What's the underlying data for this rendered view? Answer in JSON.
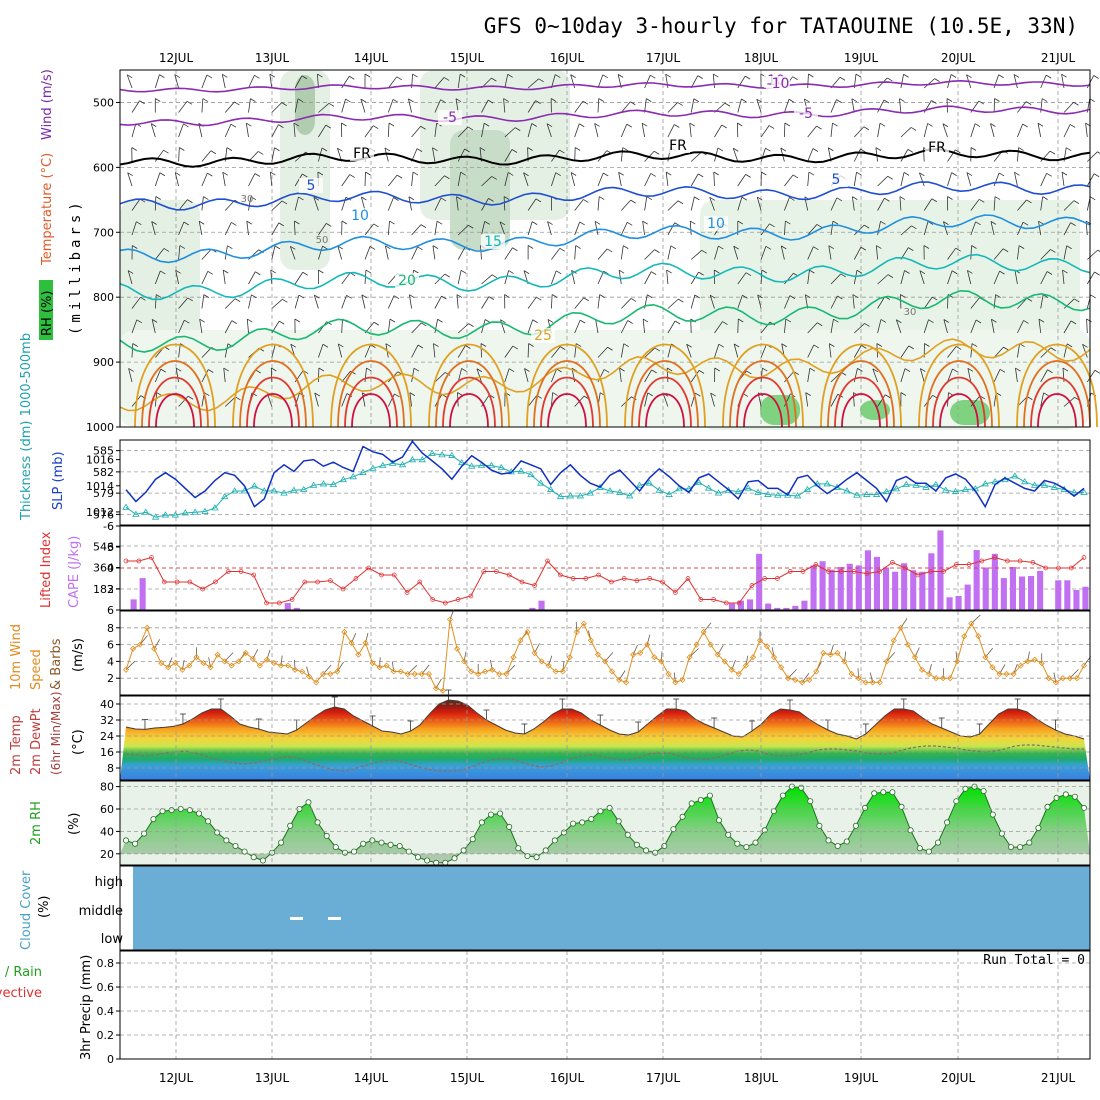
{
  "page_title": "GFS 0~10day 3-hourly for TATAOUINE (10.5E, 33N)",
  "dates": [
    "12JUL",
    "13JUL",
    "14JUL",
    "15JUL",
    "16JUL",
    "17JUL",
    "18JUL",
    "19JUL",
    "20JUL",
    "21JUL"
  ],
  "colors": {
    "cape": "#c070f0",
    "li": "#e03030",
    "slp": "#1030c0",
    "thickness": "#20b0b0",
    "wspd": "#e09020",
    "temp_red": "#d01818",
    "cloud": "#6aaed6",
    "rh_fill": "#00c000"
  },
  "chart_data": [
    {
      "id": "profile",
      "type": "contour",
      "ylabel_left": [
        "RH (%)",
        "Temperature (°C)",
        "Wind (m/s)"
      ],
      "ylabel_right": "(millibars)",
      "y_ticks": [
        "500",
        "600",
        "700",
        "800",
        "900",
        "1000"
      ],
      "ylim": [
        450,
        1000
      ],
      "isotherm_labels": [
        "10",
        "-5",
        "FR",
        "5",
        "10",
        "15",
        "20",
        "25",
        "-10",
        "-5",
        "FR",
        "5",
        "10",
        "FR"
      ],
      "rh_labels": [
        "30",
        "50",
        "30"
      ],
      "isotherms": [
        {
          "label": "-10",
          "p_start": 480,
          "p_end": 470
        },
        {
          "label": "-5",
          "p_start": 530,
          "p_end": 510
        },
        {
          "label": "FR",
          "p_start": 590,
          "p_end": 580
        },
        {
          "label": "5",
          "p_start": 655,
          "p_end": 630
        },
        {
          "label": "10",
          "p_start": 735,
          "p_end": 680
        },
        {
          "label": "15",
          "p_start": 790,
          "p_end": 745
        },
        {
          "label": "20",
          "p_start": 870,
          "p_end": 800
        },
        {
          "label": "25",
          "p_start": 960,
          "p_end": 875
        }
      ]
    },
    {
      "id": "slp",
      "type": "line",
      "left_label": "Thickness (dm) 1000-500mb",
      "right_label": "SLP (mb)",
      "left_ticks": [
        "585",
        "582",
        "579",
        "576"
      ],
      "right_ticks": [
        "1016",
        "1014",
        "1012"
      ],
      "series": [
        {
          "name": "SLP (mb)",
          "unit": "mb",
          "values": [
            1013.7,
            1012.8,
            1013.5,
            1014.5,
            1015.0,
            1014.5,
            1013.8,
            1013.1,
            1013.6,
            1014.4,
            1015.0,
            1014.8,
            1014.0,
            1012.4,
            1013.0,
            1015.0,
            1015.6,
            1015.1,
            1015.9,
            1016.0,
            1015.5,
            1015.8,
            1015.4,
            1015.1,
            1017.0,
            1016.6,
            1016.4,
            1015.8,
            1016.2,
            1017.4,
            1016.5,
            1015.9,
            1015.3,
            1014.5,
            1015.5,
            1016.3,
            1015.8,
            1015.2,
            1014.9,
            1015.0,
            1015.9,
            1015.6,
            1015.3,
            1014.1,
            1015.0,
            1015.6,
            1014.8,
            1014.2,
            1013.9,
            1014.8,
            1015.2,
            1014.4,
            1013.6,
            1014.6,
            1015.3,
            1014.7,
            1014.0,
            1013.5,
            1014.6,
            1014.9,
            1014.3,
            1013.7,
            1013.0,
            1014.3,
            1014.4,
            1013.8,
            1013.8,
            1013.3,
            1014.6,
            1014.8,
            1014.0,
            1013.4,
            1013.9,
            1014.5,
            1015.0,
            1014.4,
            1013.8,
            1012.8,
            1014.4,
            1014.7,
            1014.2,
            1014.2,
            1013.6,
            1014.6,
            1014.9,
            1014.5,
            1013.6,
            1012.4,
            1014.1,
            1014.6,
            1014.2,
            1013.8,
            1013.6,
            1014.4,
            1014.2,
            1013.8,
            1013.2,
            1013.8
          ]
        },
        {
          "name": "Thickness (dm)",
          "unit": "dm",
          "values": [
            577.0,
            576.0,
            576.3,
            575.6,
            575.9,
            575.9,
            576.2,
            576.3,
            576.4,
            576.9,
            578.5,
            579.3,
            579.3,
            580.0,
            579.3,
            579.3,
            579.0,
            579.4,
            579.5,
            580.1,
            580.3,
            580.2,
            580.9,
            581.3,
            581.9,
            582.5,
            582.9,
            583.2,
            583.0,
            583.7,
            583.7,
            584.6,
            584.4,
            584.3,
            583.3,
            582.8,
            582.9,
            582.9,
            582.6,
            582.0,
            582.1,
            581.6,
            580.4,
            579.5,
            578.5,
            578.6,
            578.6,
            579.0,
            579.8,
            579.3,
            579.1,
            578.6,
            580.1,
            580.4,
            579.4,
            578.8,
            579.6,
            579.6,
            580.5,
            579.7,
            579.0,
            579.4,
            579.2,
            579.7,
            579.1,
            578.8,
            578.7,
            578.7,
            578.6,
            579.5,
            580.3,
            580.3,
            579.8,
            579.3,
            578.7,
            578.8,
            578.8,
            579.2,
            579.6,
            580.2,
            580.1,
            579.8,
            580.2,
            579.4,
            579.2,
            579.5,
            579.6,
            580.3,
            580.6,
            580.9,
            581.4,
            580.6,
            580.1,
            580.1,
            579.8,
            579.5,
            579.1,
            579.1
          ]
        }
      ]
    },
    {
      "id": "cape",
      "type": "bar",
      "left_label": "Lifted Index",
      "right_label": "CAPE (J/kg)",
      "left_ticks": [
        "-6",
        "-3",
        "0",
        "3",
        "6"
      ],
      "right_ticks": [
        "546",
        "364",
        "182"
      ],
      "series": [
        {
          "name": "CAPE (J/kg)",
          "unit": "J/kg",
          "values": [
            0,
            91,
            273,
            0,
            0,
            0,
            0,
            0,
            0,
            0,
            0,
            0,
            0,
            0,
            0,
            0,
            0,
            0,
            59,
            18,
            0,
            0,
            0,
            0,
            0,
            0,
            0,
            0,
            0,
            0,
            0,
            0,
            0,
            0,
            0,
            0,
            0,
            0,
            0,
            0,
            0,
            0,
            0,
            0,
            0,
            18,
            80,
            0,
            0,
            0,
            0,
            0,
            0,
            0,
            0,
            0,
            0,
            0,
            0,
            0,
            0,
            0,
            0,
            0,
            0,
            0,
            0,
            55,
            80,
            91,
            482,
            55,
            18,
            18,
            35,
            80,
            382,
            418,
            346,
            369,
            396,
            382,
            512,
            455,
            364,
            328,
            400,
            341,
            328,
            486,
            682,
            109,
            120,
            218,
            513,
            364,
            482,
            273,
            369,
            287,
            291,
            335,
            0,
            255,
            255,
            171,
            200
          ]
        },
        {
          "name": "Lifted Index",
          "unit": "",
          "values": [
            -1.0,
            -1.0,
            -1.5,
            2.0,
            2.0,
            2.0,
            3.0,
            2.0,
            0.5,
            0.5,
            1.0,
            5.0,
            5.0,
            4.5,
            2.0,
            2.0,
            1.8,
            3.0,
            1.5,
            0.0,
            1.0,
            1.0,
            3.5,
            2.0,
            4.5,
            5.0,
            4.5,
            4.0,
            0.5,
            0.5,
            1.0,
            2.0,
            2.5,
            -1.0,
            1.0,
            1.5,
            1.5,
            1.0,
            2.0,
            1.5,
            1.8,
            1.5,
            2.0,
            3.5,
            1.5,
            4.5,
            4.5,
            5.0,
            5.0,
            2.5,
            1.5,
            1.5,
            0.5,
            0.5,
            -0.5,
            0.5,
            0.5,
            0.5,
            0.8,
            0.5,
            -0.8,
            0.0,
            1.0,
            0.5,
            0.5,
            -0.5,
            -0.5,
            -1.0,
            -1.5,
            -1.0,
            -1.0,
            -0.8,
            0.0,
            0.0,
            0.0,
            -1.5
          ]
        }
      ]
    },
    {
      "id": "wind10m",
      "type": "line",
      "left_label": "10m Wind Speed & Barbs",
      "right_label": "(m/s)",
      "right_ticks": [
        "8",
        "6",
        "4",
        "2"
      ],
      "series": [
        {
          "name": "Speed (m/s)",
          "unit": "m/s",
          "values": [
            3.0,
            5.5,
            6.0,
            8.0,
            5.5,
            3.8,
            3.3,
            3.8,
            3.0,
            3.5,
            4.5,
            3.8,
            3.3,
            4.8,
            4.0,
            3.5,
            4.0,
            5.0,
            4.3,
            3.5,
            4.2,
            3.8,
            3.5,
            3.5,
            3.0,
            2.8,
            2.2,
            1.5,
            2.5,
            2.5,
            2.8,
            7.5,
            6.2,
            4.8,
            6.2,
            3.8,
            3.3,
            3.5,
            2.8,
            2.8,
            2.5,
            2.5,
            2.5,
            2.5,
            0.8,
            0.5,
            9.0,
            5.5,
            4.0,
            2.8,
            2.5,
            2.8,
            3.0,
            2.5,
            2.5,
            4.5,
            6.5,
            7.5,
            5.0,
            4.0,
            3.5,
            2.8,
            2.8,
            4.5,
            7.5,
            8.5,
            6.5,
            4.8,
            4.0,
            2.8,
            1.8,
            1.5,
            4.8,
            5.0,
            6.0,
            4.5,
            4.0,
            2.5,
            1.5,
            1.8,
            4.5,
            6.0,
            7.5,
            6.0,
            4.8,
            4.0,
            3.0,
            2.5,
            3.5,
            4.5,
            6.5,
            5.8,
            4.5,
            3.3,
            2.0,
            1.8,
            1.5,
            1.8,
            2.8,
            5.0,
            4.8,
            5.0,
            4.0,
            2.5,
            2.0,
            1.5,
            1.5,
            1.5,
            4.0,
            6.5,
            8.0,
            6.0,
            4.5,
            3.0,
            2.5,
            2.0,
            2.0,
            2.0,
            4.0,
            7.0,
            8.5,
            7.0,
            4.5,
            3.3,
            2.5,
            2.5,
            2.5,
            3.5,
            4.0,
            4.2,
            3.8,
            2.0,
            1.5,
            2.0,
            2.0,
            2.0,
            3.5
          ]
        }
      ]
    },
    {
      "id": "temp2m",
      "type": "area",
      "left_label": "2m Temp 2m DewPt (6hr Min/Max)",
      "right_label": "(°C)",
      "right_ticks": [
        "40",
        "32",
        "24",
        "16",
        "8"
      ],
      "series": [
        {
          "name": "2m Temp",
          "unit": "°C",
          "values": [
            28.5,
            27.5,
            27.3,
            28.0,
            28.3,
            28.8,
            30.0,
            32.5,
            35.5,
            37.5,
            37.5,
            34.0,
            30.0,
            28.5,
            27.5,
            26.0,
            25.5,
            25.0,
            27.0,
            30.5,
            34.0,
            37.0,
            38.5,
            37.5,
            34.0,
            31.5,
            29.0,
            26.5,
            26.0,
            25.0,
            26.5,
            29.5,
            35.0,
            40.0,
            42.0,
            41.5,
            39.5,
            35.5,
            32.0,
            29.5,
            27.0,
            25.5,
            25.0,
            27.5,
            31.0,
            35.0,
            37.5,
            37.5,
            35.5,
            32.0,
            29.5,
            27.0,
            25.0,
            24.5,
            26.0,
            30.0,
            34.0,
            37.5,
            37.5,
            36.5,
            32.5,
            30.0,
            28.0,
            26.0,
            24.0,
            23.5,
            26.5,
            30.0,
            35.0,
            37.5,
            37.0,
            36.0,
            32.5,
            29.5,
            27.0,
            25.0,
            24.0,
            22.5,
            25.0,
            29.5,
            34.0,
            37.5,
            37.5,
            36.5,
            33.0,
            30.0,
            28.0,
            26.0,
            24.0,
            23.5,
            25.0,
            30.0,
            35.0,
            37.5,
            37.5,
            36.0,
            32.5,
            29.5,
            27.0,
            25.0,
            24.0,
            22.5
          ]
        },
        {
          "name": "2m DewPt",
          "unit": "°C",
          "values": [
            15.0,
            14.5,
            14.0,
            14.5,
            15.5,
            16.0,
            16.5,
            15.5,
            14.0,
            12.5,
            11.5,
            10.5,
            10.0,
            10.5,
            11.5,
            12.5,
            13.5,
            13.5,
            12.0,
            10.0,
            8.5,
            7.0,
            6.5,
            7.5,
            9.0,
            10.5,
            11.5,
            12.0,
            11.0,
            9.5,
            8.0,
            7.0,
            6.5,
            6.5,
            7.0,
            8.5,
            10.5,
            12.0,
            12.5,
            12.5,
            11.0,
            9.5,
            8.5,
            9.0,
            10.5,
            12.5,
            14.0,
            14.5,
            14.0,
            13.0,
            12.0,
            12.0,
            13.5,
            15.0,
            15.5,
            15.5,
            14.0,
            13.0,
            12.5,
            12.5,
            13.5,
            15.0,
            16.5,
            17.0,
            16.5,
            15.0,
            14.0,
            14.0,
            14.5,
            15.5,
            17.0,
            17.5,
            17.5,
            17.0,
            16.5,
            15.5,
            15.0,
            15.0,
            16.0,
            17.5,
            18.5,
            19.0,
            19.0,
            18.5,
            18.0,
            17.0,
            16.5,
            16.0,
            16.5,
            17.5,
            19.0,
            19.5,
            19.5,
            19.0,
            18.5,
            18.0,
            17.5,
            17.5
          ]
        }
      ]
    },
    {
      "id": "rh2m",
      "type": "area",
      "left_label": "2m RH",
      "right_label": "(%)",
      "right_ticks": [
        "80",
        "60",
        "40",
        "20"
      ],
      "series": [
        {
          "name": "2m RH (%)",
          "unit": "%",
          "values": [
            32,
            29,
            38,
            51,
            58,
            59,
            60,
            59,
            56,
            49,
            39,
            32,
            27,
            22,
            17,
            14,
            21,
            30,
            45,
            60,
            66,
            48,
            36,
            26,
            21,
            22,
            29,
            32,
            30,
            28,
            27,
            22,
            17,
            14,
            12,
            12,
            16,
            23,
            33,
            48,
            55,
            56,
            44,
            25,
            18,
            17,
            23,
            32,
            39,
            47,
            48,
            51,
            58,
            61,
            49,
            37,
            28,
            23,
            21,
            27,
            42,
            53,
            65,
            68,
            72,
            50,
            37,
            29,
            26,
            30,
            41,
            58,
            72,
            80,
            79,
            67,
            45,
            32,
            27,
            31,
            45,
            61,
            74,
            75,
            75,
            62,
            41,
            25,
            22,
            30,
            48,
            67,
            78,
            80,
            76,
            55,
            38,
            26,
            26,
            30,
            43,
            62,
            70,
            73,
            71,
            61
          ]
        }
      ]
    },
    {
      "id": "cloud",
      "type": "heatmap",
      "left_label": "Cloud Cover",
      "right_label": "(%)",
      "y_labels": [
        "high",
        "middle",
        "low"
      ]
    },
    {
      "id": "precip",
      "type": "bar",
      "left_label": "Total / Rain / Convective",
      "right_label": "3hr Precip (mm)",
      "y_ticks": [
        "0.8",
        "0.6",
        "0.4",
        "0.2",
        "0"
      ],
      "ylim": [
        0,
        0.9
      ],
      "run_total": "Run Total = 0",
      "series": [
        {
          "name": "Total",
          "values": []
        }
      ]
    }
  ]
}
